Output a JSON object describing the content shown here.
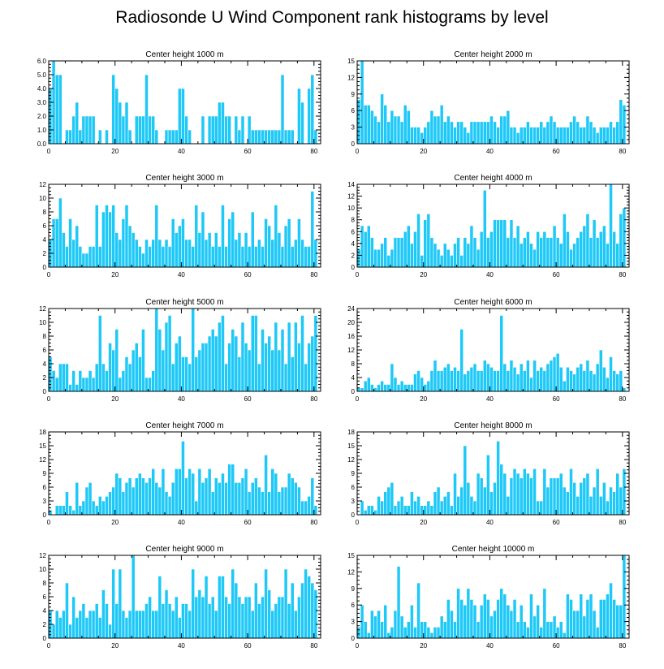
{
  "figure_title": "Radiosonde U Wind Component rank histograms by level",
  "colors": {
    "bar": "#1ec8f7",
    "axis": "#000000",
    "background": "#ffffff"
  },
  "chart_data": [
    {
      "type": "bar",
      "title": "Center height 1000 m",
      "xlim": [
        0,
        82
      ],
      "ylim": [
        0,
        6
      ],
      "xticks": [
        0,
        20,
        40,
        60,
        80
      ],
      "yticks": [
        0,
        1,
        2,
        3,
        4,
        5,
        6
      ],
      "ytick_labels": [
        "0.0",
        "1.0",
        "2.0",
        "3.0",
        "4.0",
        "5.0",
        "6.0"
      ],
      "values": [
        4,
        6,
        5,
        5,
        0,
        1,
        1,
        2,
        3,
        1,
        2,
        2,
        2,
        2,
        0,
        1,
        0,
        1,
        0,
        5,
        4,
        3,
        2,
        3,
        1,
        0,
        2,
        2,
        2,
        5,
        2,
        2,
        1,
        0,
        0,
        1,
        1,
        1,
        1,
        4,
        4,
        2,
        1,
        0,
        0,
        0,
        2,
        0,
        2,
        2,
        2,
        3,
        3,
        2,
        2,
        0,
        2,
        1,
        2,
        0,
        2,
        1,
        1,
        1,
        1,
        1,
        1,
        1,
        1,
        1,
        5,
        1,
        1,
        1,
        0,
        4,
        3,
        0,
        4,
        5,
        1
      ],
      "xlabel": "",
      "ylabel": "",
      "grid": false
    },
    {
      "type": "bar",
      "title": "Center height 2000 m",
      "xlim": [
        0,
        82
      ],
      "ylim": [
        0,
        15
      ],
      "xticks": [
        0,
        20,
        40,
        60,
        80
      ],
      "yticks": [
        0,
        3,
        6,
        9,
        12,
        15
      ],
      "ytick_labels": [
        "0",
        "3",
        "6",
        "9",
        "12",
        "15"
      ],
      "values": [
        8,
        15,
        7,
        7,
        6,
        5,
        4,
        9,
        7,
        4,
        6,
        5,
        5,
        4,
        7,
        6,
        3,
        3,
        3,
        2,
        3,
        4,
        6,
        5,
        5,
        7,
        4,
        5,
        4,
        3,
        4,
        4,
        3,
        2,
        4,
        4,
        4,
        4,
        4,
        4,
        5,
        4,
        3,
        5,
        5,
        6,
        3,
        3,
        2,
        3,
        3,
        4,
        3,
        3,
        3,
        4,
        3,
        4,
        5,
        4,
        3,
        3,
        3,
        3,
        4,
        5,
        4,
        3,
        3,
        5,
        4,
        3,
        2,
        3,
        3,
        3,
        4,
        3,
        4,
        8,
        7
      ],
      "xlabel": "",
      "ylabel": "",
      "grid": false
    },
    {
      "type": "bar",
      "title": "Center height 3000 m",
      "xlim": [
        0,
        82
      ],
      "ylim": [
        0,
        12
      ],
      "xticks": [
        0,
        20,
        40,
        60,
        80
      ],
      "yticks": [
        0,
        2,
        4,
        6,
        8,
        10,
        12
      ],
      "ytick_labels": [
        "0",
        "2",
        "4",
        "6",
        "8",
        "10",
        "12"
      ],
      "values": [
        4,
        7,
        7,
        10,
        5,
        3,
        7,
        4,
        6,
        3,
        2,
        2,
        3,
        3,
        9,
        3,
        8,
        9,
        8,
        9,
        5,
        4,
        7,
        9,
        6,
        5,
        4,
        3,
        2,
        4,
        3,
        4,
        9,
        4,
        3,
        4,
        3,
        7,
        5,
        6,
        7,
        4,
        4,
        3,
        9,
        5,
        8,
        4,
        5,
        3,
        5,
        3,
        9,
        3,
        7,
        8,
        4,
        5,
        3,
        5,
        3,
        8,
        3,
        4,
        3,
        7,
        6,
        4,
        9,
        5,
        3,
        6,
        7,
        3,
        4,
        7,
        4,
        3,
        3,
        11,
        4
      ],
      "xlabel": "",
      "ylabel": "",
      "grid": false
    },
    {
      "type": "bar",
      "title": "Center height 4000 m",
      "xlim": [
        0,
        82
      ],
      "ylim": [
        0,
        14
      ],
      "xticks": [
        0,
        20,
        40,
        60,
        80
      ],
      "yticks": [
        0,
        2,
        4,
        6,
        8,
        10,
        12,
        14
      ],
      "ytick_labels": [
        "0",
        "2",
        "4",
        "6",
        "8",
        "10",
        "12",
        "14"
      ],
      "values": [
        3,
        7,
        6,
        7,
        5,
        3,
        3,
        4,
        5,
        2,
        3,
        5,
        5,
        5,
        6,
        7,
        4,
        6,
        9,
        2,
        8,
        9,
        5,
        4,
        3,
        2,
        4,
        3,
        2,
        4,
        5,
        2,
        5,
        4,
        7,
        5,
        3,
        6,
        13,
        5,
        6,
        8,
        8,
        8,
        8,
        5,
        8,
        5,
        7,
        4,
        5,
        6,
        4,
        3,
        6,
        5,
        6,
        5,
        5,
        7,
        5,
        4,
        9,
        6,
        3,
        4,
        5,
        6,
        7,
        9,
        5,
        8,
        5,
        6,
        7,
        4,
        14,
        6,
        4,
        9,
        10
      ],
      "xlabel": "",
      "ylabel": "",
      "grid": false
    },
    {
      "type": "bar",
      "title": "Center height 5000 m",
      "xlim": [
        0,
        82
      ],
      "ylim": [
        0,
        12
      ],
      "xticks": [
        0,
        20,
        40,
        60,
        80
      ],
      "yticks": [
        0,
        2,
        4,
        6,
        8,
        10,
        12
      ],
      "ytick_labels": [
        "0",
        "2",
        "4",
        "6",
        "8",
        "10",
        "12"
      ],
      "values": [
        5,
        3,
        2,
        4,
        4,
        4,
        1,
        3,
        1,
        3,
        2,
        2,
        3,
        2,
        4,
        11,
        4,
        3,
        7,
        6,
        9,
        2,
        3,
        5,
        4,
        6,
        7,
        5,
        9,
        2,
        2,
        3,
        12,
        9,
        6,
        10,
        11,
        4,
        7,
        8,
        5,
        5,
        4,
        12,
        5,
        6,
        7,
        7,
        8,
        9,
        8,
        10,
        11,
        4,
        7,
        9,
        8,
        5,
        10,
        7,
        6,
        11,
        11,
        4,
        9,
        7,
        8,
        6,
        10,
        6,
        9,
        4,
        10,
        5,
        10,
        7,
        11,
        4,
        7,
        8,
        11
      ],
      "xlabel": "",
      "ylabel": "",
      "grid": false
    },
    {
      "type": "bar",
      "title": "Center height 6000 m",
      "xlim": [
        0,
        82
      ],
      "ylim": [
        0,
        24
      ],
      "xticks": [
        0,
        20,
        40,
        60,
        80
      ],
      "yticks": [
        0,
        4,
        8,
        12,
        16,
        20,
        24
      ],
      "ytick_labels": [
        "0",
        "4",
        "8",
        "12",
        "16",
        "20",
        "24"
      ],
      "values": [
        1,
        1,
        3,
        4,
        2,
        1,
        2,
        3,
        2,
        2,
        8,
        4,
        2,
        3,
        2,
        2,
        2,
        5,
        6,
        4,
        2,
        3,
        6,
        9,
        6,
        6,
        7,
        8,
        6,
        7,
        6,
        18,
        5,
        6,
        7,
        8,
        6,
        6,
        9,
        8,
        7,
        6,
        6,
        22,
        8,
        6,
        9,
        7,
        5,
        8,
        6,
        9,
        4,
        9,
        6,
        7,
        6,
        8,
        9,
        10,
        11,
        7,
        3,
        7,
        6,
        5,
        7,
        8,
        6,
        9,
        6,
        5,
        8,
        12,
        7,
        4,
        10,
        6,
        5,
        6,
        1
      ],
      "xlabel": "",
      "ylabel": "",
      "grid": false
    },
    {
      "type": "bar",
      "title": "Center height 7000 m",
      "xlim": [
        0,
        82
      ],
      "ylim": [
        0,
        18
      ],
      "xticks": [
        0,
        20,
        40,
        60,
        80
      ],
      "yticks": [
        0,
        3,
        6,
        9,
        12,
        15,
        18
      ],
      "ytick_labels": [
        "0",
        "3",
        "6",
        "9",
        "12",
        "15",
        "18"
      ],
      "values": [
        1,
        0,
        2,
        2,
        2,
        5,
        2,
        1,
        7,
        2,
        3,
        6,
        7,
        3,
        2,
        4,
        3,
        4,
        5,
        6,
        9,
        8,
        5,
        7,
        8,
        6,
        8,
        9,
        8,
        7,
        8,
        10,
        7,
        6,
        10,
        5,
        4,
        7,
        10,
        10,
        16,
        8,
        10,
        9,
        3,
        10,
        7,
        8,
        10,
        5,
        8,
        7,
        9,
        7,
        11,
        11,
        7,
        7,
        8,
        10,
        5,
        7,
        8,
        6,
        5,
        13,
        5,
        10,
        9,
        5,
        6,
        6,
        9,
        8,
        7,
        6,
        3,
        3,
        4,
        8,
        2
      ],
      "xlabel": "",
      "ylabel": "",
      "grid": false
    },
    {
      "type": "bar",
      "title": "Center height 8000 m",
      "xlim": [
        0,
        82
      ],
      "ylim": [
        0,
        18
      ],
      "xticks": [
        0,
        20,
        40,
        60,
        80
      ],
      "yticks": [
        0,
        3,
        6,
        9,
        12,
        15,
        18
      ],
      "ytick_labels": [
        "0",
        "3",
        "6",
        "9",
        "12",
        "15",
        "18"
      ],
      "values": [
        0,
        3,
        1,
        2,
        2,
        1,
        4,
        3,
        5,
        6,
        7,
        2,
        3,
        4,
        2,
        2,
        5,
        3,
        4,
        2,
        2,
        3,
        2,
        5,
        6,
        3,
        4,
        5,
        2,
        9,
        4,
        6,
        15,
        7,
        4,
        3,
        9,
        8,
        6,
        13,
        5,
        7,
        16,
        11,
        9,
        4,
        8,
        10,
        9,
        8,
        10,
        9,
        8,
        10,
        3,
        3,
        10,
        6,
        8,
        8,
        8,
        9,
        6,
        5,
        10,
        7,
        4,
        7,
        8,
        9,
        4,
        6,
        10,
        4,
        7,
        3,
        6,
        5,
        9,
        6,
        10
      ],
      "xlabel": "",
      "ylabel": "",
      "grid": false
    },
    {
      "type": "bar",
      "title": "Center height 9000 m",
      "xlim": [
        0,
        82
      ],
      "ylim": [
        0,
        12
      ],
      "xticks": [
        0,
        20,
        40,
        60,
        80
      ],
      "yticks": [
        0,
        2,
        4,
        6,
        8,
        10,
        12
      ],
      "ytick_labels": [
        "0",
        "2",
        "4",
        "6",
        "8",
        "10",
        "12"
      ],
      "values": [
        4,
        2,
        4,
        3,
        4,
        8,
        2,
        6,
        3,
        4,
        5,
        3,
        4,
        4,
        5,
        3,
        7,
        5,
        2,
        10,
        5,
        10,
        4,
        3,
        4,
        12,
        4,
        4,
        4,
        5,
        6,
        4,
        4,
        9,
        5,
        7,
        5,
        4,
        6,
        3,
        5,
        5,
        4,
        10,
        6,
        7,
        6,
        9,
        5,
        6,
        4,
        9,
        9,
        6,
        5,
        10,
        8,
        6,
        5,
        6,
        6,
        4,
        8,
        5,
        6,
        10,
        7,
        4,
        5,
        6,
        6,
        10,
        5,
        8,
        4,
        6,
        8,
        10,
        9,
        8,
        7
      ],
      "xlabel": "",
      "ylabel": "",
      "grid": false
    },
    {
      "type": "bar",
      "title": "Center height 10000 m",
      "xlim": [
        0,
        82
      ],
      "ylim": [
        0,
        15
      ],
      "xticks": [
        0,
        20,
        40,
        60,
        80
      ],
      "yticks": [
        0,
        3,
        6,
        9,
        12,
        15
      ],
      "ytick_labels": [
        "0",
        "3",
        "6",
        "9",
        "12",
        "15"
      ],
      "values": [
        2,
        6,
        3,
        1,
        5,
        4,
        5,
        3,
        6,
        1,
        2,
        5,
        13,
        4,
        2,
        3,
        6,
        2,
        10,
        3,
        3,
        2,
        1,
        2,
        2,
        4,
        3,
        7,
        5,
        3,
        9,
        7,
        6,
        9,
        7,
        6,
        3,
        6,
        8,
        7,
        4,
        5,
        7,
        9,
        8,
        6,
        5,
        7,
        3,
        6,
        3,
        2,
        8,
        4,
        6,
        2,
        9,
        3,
        3,
        4,
        2,
        3,
        1,
        8,
        7,
        5,
        5,
        8,
        4,
        7,
        8,
        5,
        2,
        7,
        7,
        8,
        10,
        7,
        6,
        6,
        15
      ]
    }
  ]
}
